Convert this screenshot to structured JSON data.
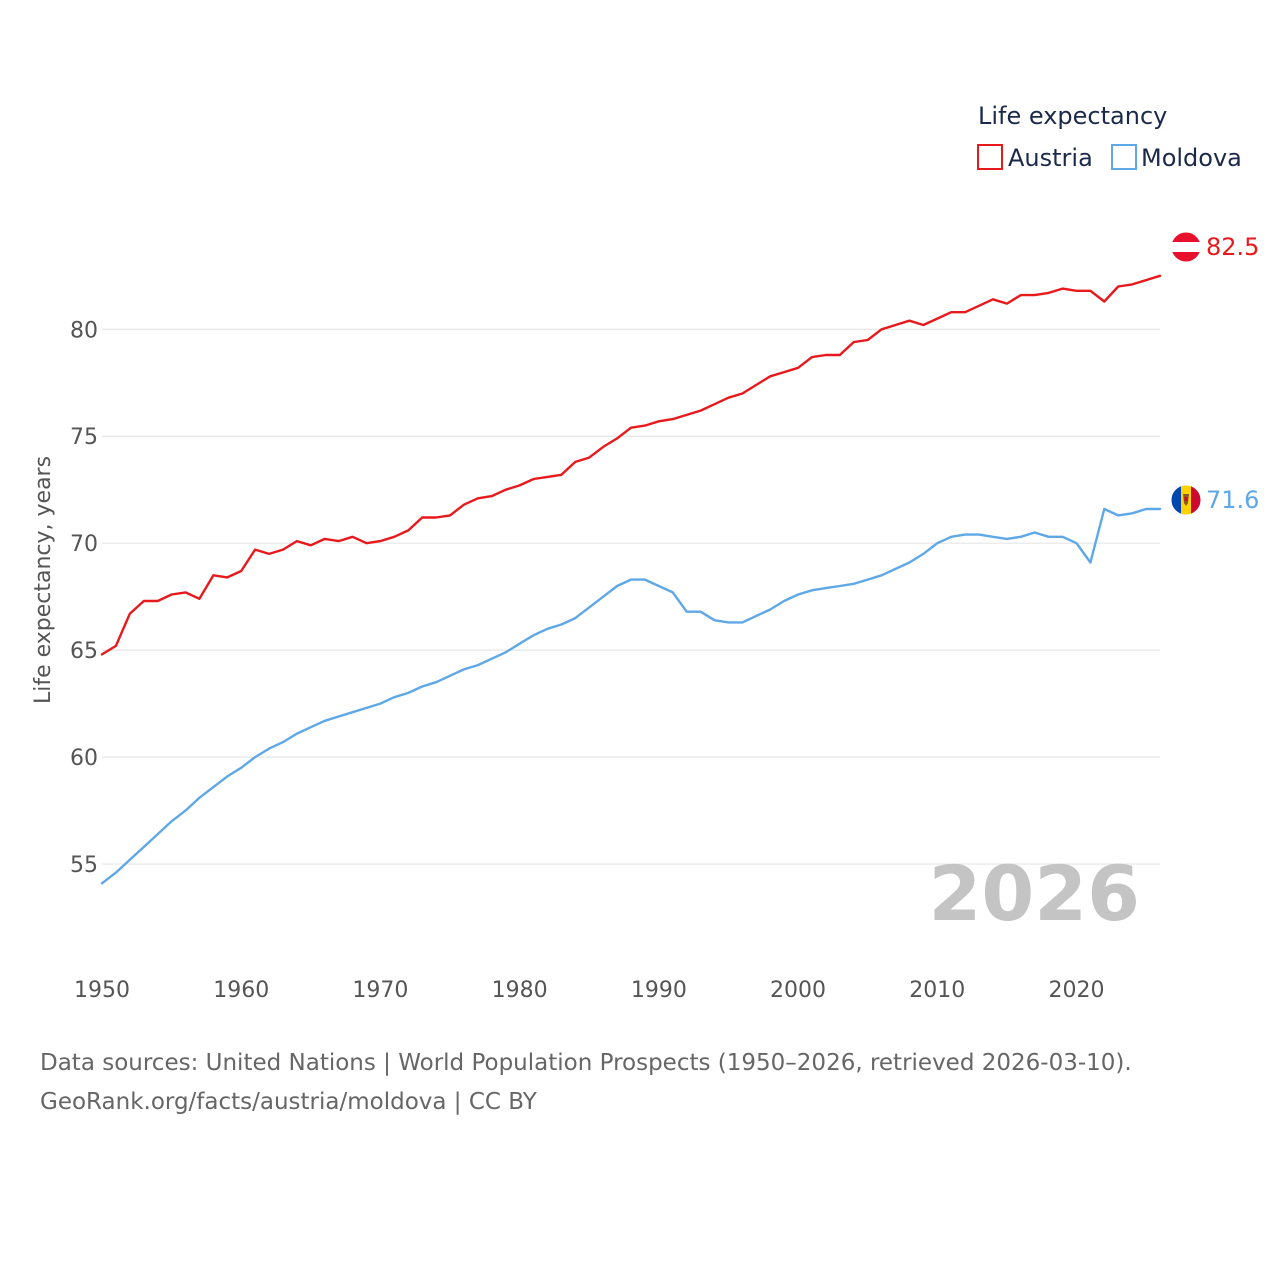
{
  "chart_data": {
    "type": "line",
    "title": "",
    "ylabel": "Life expectancy, years",
    "xlabel": "",
    "xlim": [
      1950,
      2026
    ],
    "ylim": [
      52.9,
      83.8
    ],
    "yticks": [
      55,
      60,
      65,
      70,
      75,
      80
    ],
    "xticks": [
      1950,
      1960,
      1970,
      1980,
      1990,
      2000,
      2010,
      2020
    ],
    "grid": true,
    "legend": {
      "title": "Life expectancy",
      "placement": "top-right"
    },
    "watermark_year": "2026",
    "x": [
      1950,
      1951,
      1952,
      1953,
      1954,
      1955,
      1956,
      1957,
      1958,
      1959,
      1960,
      1961,
      1962,
      1963,
      1964,
      1965,
      1966,
      1967,
      1968,
      1969,
      1970,
      1971,
      1972,
      1973,
      1974,
      1975,
      1976,
      1977,
      1978,
      1979,
      1980,
      1981,
      1982,
      1983,
      1984,
      1985,
      1986,
      1987,
      1988,
      1989,
      1990,
      1991,
      1992,
      1993,
      1994,
      1995,
      1996,
      1997,
      1998,
      1999,
      2000,
      2001,
      2002,
      2003,
      2004,
      2005,
      2006,
      2007,
      2008,
      2009,
      2010,
      2011,
      2012,
      2013,
      2014,
      2015,
      2016,
      2017,
      2018,
      2019,
      2020,
      2021,
      2022,
      2023,
      2024,
      2025,
      2026
    ],
    "series": [
      {
        "name": "Austria",
        "color": "#e8191c",
        "end_label": "82.5",
        "values": [
          64.8,
          65.2,
          66.7,
          67.3,
          67.3,
          67.6,
          67.7,
          67.4,
          68.5,
          68.4,
          68.7,
          69.7,
          69.5,
          69.7,
          70.1,
          69.9,
          70.2,
          70.1,
          70.3,
          70.0,
          70.1,
          70.3,
          70.6,
          71.2,
          71.2,
          71.3,
          71.8,
          72.1,
          72.2,
          72.5,
          72.7,
          73.0,
          73.1,
          73.2,
          73.8,
          74.0,
          74.5,
          74.9,
          75.4,
          75.5,
          75.7,
          75.8,
          76.0,
          76.2,
          76.5,
          76.8,
          77.0,
          77.4,
          77.8,
          78.0,
          78.2,
          78.7,
          78.8,
          78.8,
          79.4,
          79.5,
          80.0,
          80.2,
          80.4,
          80.2,
          80.5,
          80.8,
          80.8,
          81.1,
          81.4,
          81.2,
          81.6,
          81.6,
          81.7,
          81.9,
          81.8,
          81.8,
          81.3,
          82.0,
          82.1,
          82.3,
          82.5
        ]
      },
      {
        "name": "Moldova",
        "color": "#5fa8e8",
        "end_label": "71.6",
        "values": [
          54.1,
          54.6,
          55.2,
          55.8,
          56.4,
          57.0,
          57.5,
          58.1,
          58.6,
          59.1,
          59.5,
          60.0,
          60.4,
          60.7,
          61.1,
          61.4,
          61.7,
          61.9,
          62.1,
          62.3,
          62.5,
          62.8,
          63.0,
          63.3,
          63.5,
          63.8,
          64.1,
          64.3,
          64.6,
          64.9,
          65.3,
          65.7,
          66.0,
          66.2,
          66.5,
          67.0,
          67.5,
          68.0,
          68.3,
          68.3,
          68.0,
          67.7,
          66.8,
          66.8,
          66.4,
          66.3,
          66.3,
          66.6,
          66.9,
          67.3,
          67.6,
          67.8,
          67.9,
          68.0,
          68.1,
          68.3,
          68.5,
          68.8,
          69.1,
          69.5,
          70.0,
          70.3,
          70.4,
          70.4,
          70.3,
          70.2,
          70.3,
          70.5,
          70.3,
          70.3,
          70.0,
          69.1,
          71.6,
          71.3,
          71.4,
          71.6,
          71.6
        ]
      }
    ]
  },
  "footer": {
    "line1": "Data sources: United Nations | World Population Prospects (1950–2026, retrieved 2026-03-10).",
    "line2": "GeoRank.org/facts/austria/moldova | CC BY"
  },
  "colors": {
    "grid": "#e6e6e6",
    "austria_flag_red": "#e8112d",
    "moldova_flag_blue": "#0046ae",
    "moldova_flag_yellow": "#ffd200",
    "moldova_flag_red": "#cc092f"
  }
}
